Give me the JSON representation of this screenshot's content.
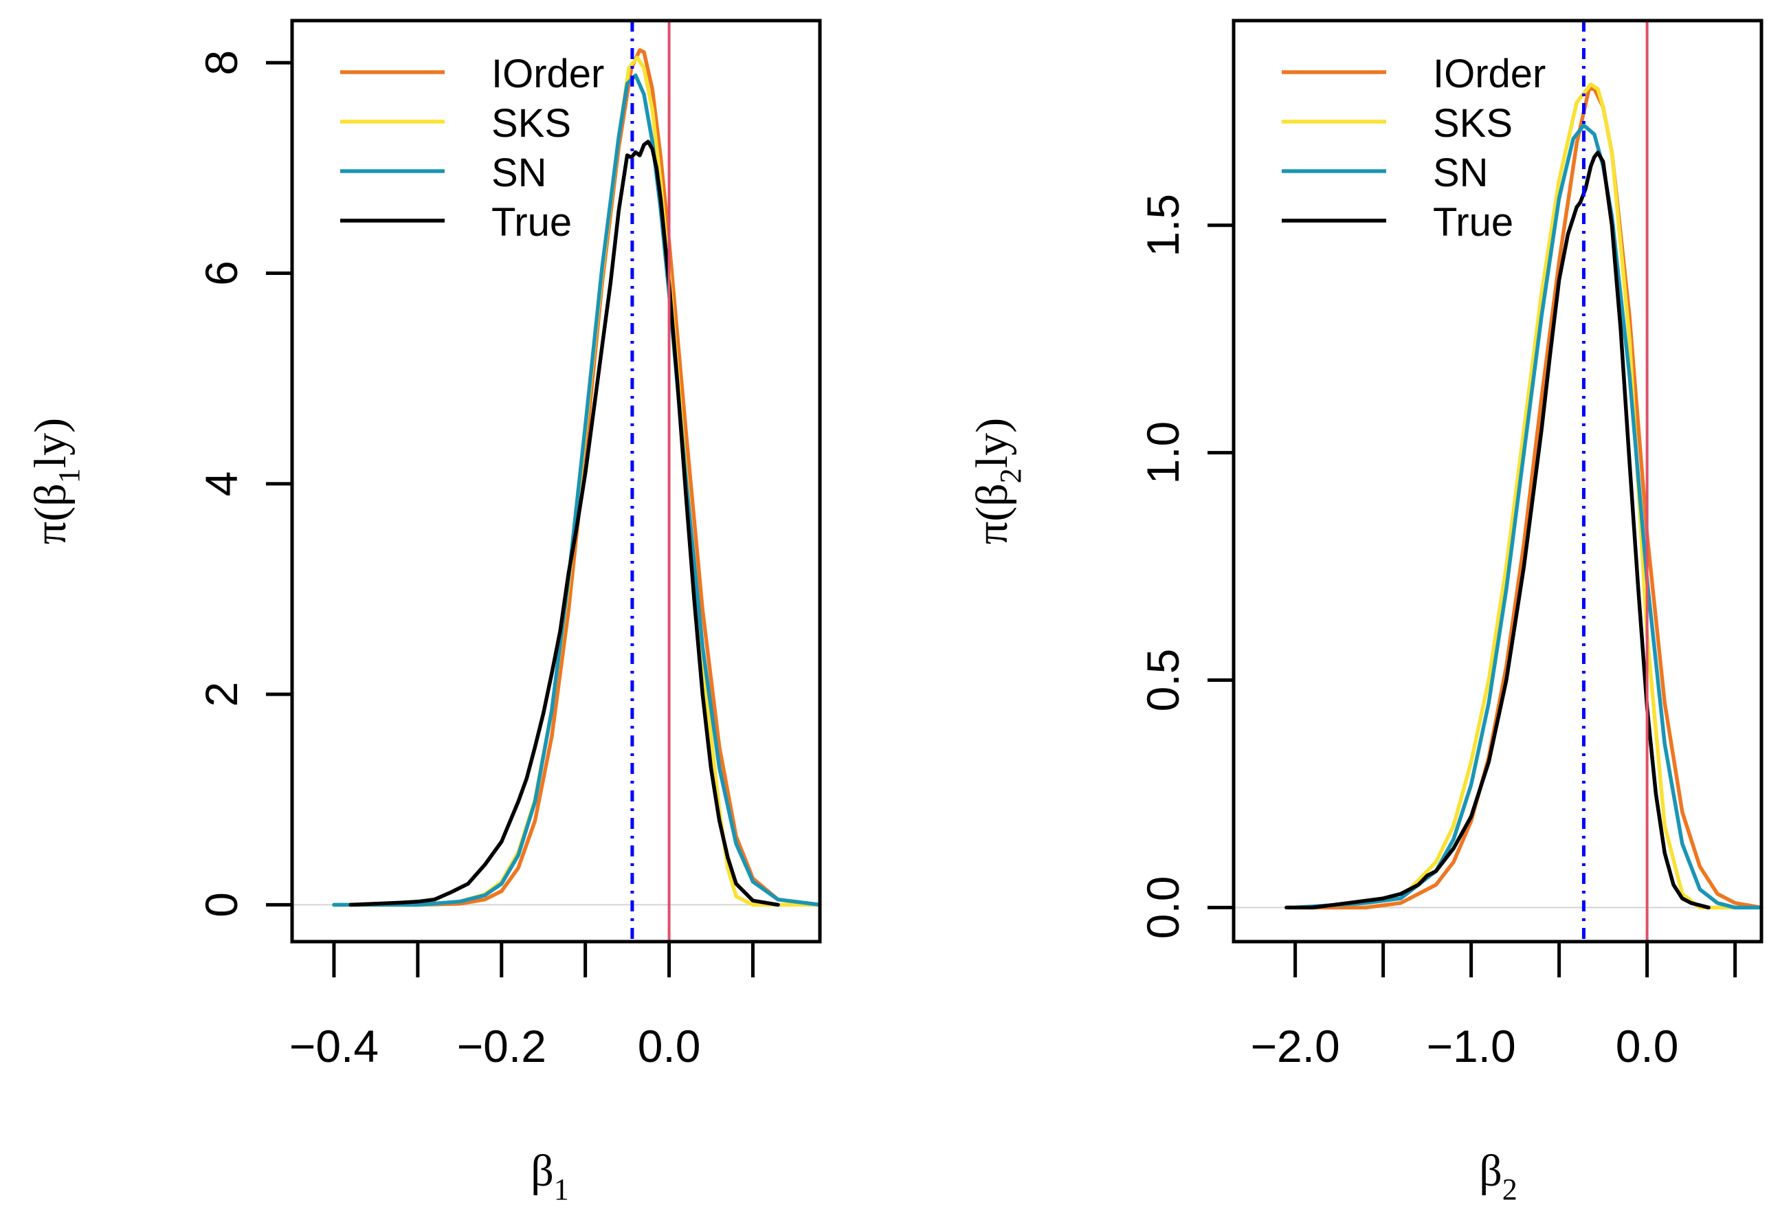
{
  "colors": {
    "iorder": "#EE7722",
    "sks": "#F9E235",
    "sn": "#1A95B5",
    "true": "#000000",
    "mode_line": "#0000FF",
    "zero_line": "#E0506A",
    "baseline": "#D3D3D3"
  },
  "chart_data": [
    {
      "type": "line",
      "panel": "left",
      "xlabel": {
        "symbol": "β",
        "sub": "1"
      },
      "ylabel": {
        "prefix": "π(β",
        "sub": "1",
        "suffix": "ly)"
      },
      "xlim": [
        -0.45,
        0.18
      ],
      "ylim": [
        -0.35,
        8.4
      ],
      "x_ticks": [
        -0.4,
        -0.3,
        -0.2,
        -0.1,
        0.0,
        0.1
      ],
      "x_tick_labels": [
        {
          "value": -0.4,
          "label": "−0.4"
        },
        {
          "value": -0.2,
          "label": "−0.2"
        },
        {
          "value": 0.0,
          "label": "0.0"
        }
      ],
      "y_ticks": [
        {
          "value": 0,
          "label": "0"
        },
        {
          "value": 2,
          "label": "2"
        },
        {
          "value": 4,
          "label": "4"
        },
        {
          "value": 6,
          "label": "6"
        },
        {
          "value": 8,
          "label": "8"
        }
      ],
      "vlines": {
        "zero": 0.0,
        "mode": -0.044
      },
      "legend": {
        "position": "top-left",
        "entries": [
          {
            "key": "iorder",
            "label": "IOrder"
          },
          {
            "key": "sks",
            "label": "SKS"
          },
          {
            "key": "sn",
            "label": "SN"
          },
          {
            "key": "true",
            "label": "True"
          }
        ]
      },
      "series": [
        {
          "name": "IOrder",
          "color_key": "iorder",
          "x": [
            -0.4,
            -0.3,
            -0.25,
            -0.22,
            -0.2,
            -0.18,
            -0.16,
            -0.14,
            -0.12,
            -0.1,
            -0.08,
            -0.06,
            -0.045,
            -0.035,
            -0.03,
            -0.02,
            -0.01,
            0.0,
            0.02,
            0.04,
            0.06,
            0.08,
            0.1,
            0.13,
            0.18
          ],
          "y": [
            0,
            0,
            0.01,
            0.05,
            0.13,
            0.35,
            0.8,
            1.6,
            2.8,
            4.3,
            5.9,
            7.2,
            7.95,
            8.12,
            8.1,
            7.75,
            7.1,
            6.3,
            4.5,
            2.8,
            1.5,
            0.65,
            0.25,
            0.05,
            0
          ]
        },
        {
          "name": "SKS",
          "color_key": "sks",
          "x": [
            -0.4,
            -0.3,
            -0.25,
            -0.22,
            -0.2,
            -0.18,
            -0.16,
            -0.14,
            -0.12,
            -0.1,
            -0.08,
            -0.06,
            -0.048,
            -0.038,
            -0.03,
            -0.02,
            -0.01,
            0.0,
            0.02,
            0.04,
            0.06,
            0.07,
            0.08,
            0.1,
            0.18
          ],
          "y": [
            0,
            0,
            0.03,
            0.1,
            0.22,
            0.5,
            1.0,
            1.85,
            3.05,
            4.5,
            6.0,
            7.3,
            7.95,
            8.05,
            7.95,
            7.55,
            6.85,
            6.0,
            4.1,
            2.3,
            0.9,
            0.35,
            0.08,
            0,
            0
          ]
        },
        {
          "name": "SN",
          "color_key": "sn",
          "x": [
            -0.4,
            -0.3,
            -0.25,
            -0.22,
            -0.2,
            -0.18,
            -0.16,
            -0.14,
            -0.12,
            -0.1,
            -0.08,
            -0.06,
            -0.05,
            -0.04,
            -0.03,
            -0.02,
            -0.01,
            0.0,
            0.02,
            0.04,
            0.06,
            0.08,
            0.1,
            0.13,
            0.18
          ],
          "y": [
            0,
            0,
            0.03,
            0.09,
            0.2,
            0.47,
            0.98,
            1.85,
            3.1,
            4.55,
            6.05,
            7.3,
            7.8,
            7.88,
            7.7,
            7.25,
            6.6,
            5.8,
            4.05,
            2.45,
            1.3,
            0.58,
            0.22,
            0.05,
            0
          ]
        },
        {
          "name": "True",
          "color_key": "true",
          "x": [
            -0.38,
            -0.32,
            -0.3,
            -0.28,
            -0.26,
            -0.24,
            -0.22,
            -0.2,
            -0.18,
            -0.17,
            -0.16,
            -0.15,
            -0.14,
            -0.13,
            -0.12,
            -0.11,
            -0.1,
            -0.09,
            -0.08,
            -0.07,
            -0.06,
            -0.05,
            -0.045,
            -0.04,
            -0.035,
            -0.03,
            -0.025,
            -0.02,
            -0.015,
            -0.01,
            0.0,
            0.01,
            0.02,
            0.03,
            0.04,
            0.05,
            0.06,
            0.07,
            0.08,
            0.1,
            0.13
          ],
          "y": [
            0,
            0.02,
            0.03,
            0.05,
            0.12,
            0.2,
            0.38,
            0.6,
            0.98,
            1.2,
            1.5,
            1.82,
            2.2,
            2.6,
            3.15,
            3.6,
            4.1,
            4.7,
            5.3,
            5.9,
            6.6,
            7.12,
            7.1,
            7.15,
            7.12,
            7.22,
            7.25,
            7.18,
            7.0,
            6.7,
            5.9,
            4.95,
            3.9,
            2.9,
            2.0,
            1.3,
            0.8,
            0.45,
            0.2,
            0.04,
            0
          ]
        }
      ]
    },
    {
      "type": "line",
      "panel": "right",
      "xlabel": {
        "symbol": "β",
        "sub": "2"
      },
      "ylabel": {
        "prefix": "π(β",
        "sub": "2",
        "suffix": "ly)"
      },
      "xlim": [
        -2.35,
        0.65
      ],
      "ylim": [
        -0.075,
        1.95
      ],
      "x_ticks": [
        -2.0,
        -1.5,
        -1.0,
        -0.5,
        0.0,
        0.5
      ],
      "x_tick_labels": [
        {
          "value": -2.0,
          "label": "−2.0"
        },
        {
          "value": -1.0,
          "label": "−1.0"
        },
        {
          "value": 0.0,
          "label": "0.0"
        }
      ],
      "y_ticks": [
        {
          "value": 0.0,
          "label": "0.0"
        },
        {
          "value": 0.5,
          "label": "0.5"
        },
        {
          "value": 1.0,
          "label": "1.0"
        },
        {
          "value": 1.5,
          "label": "1.5"
        }
      ],
      "vlines": {
        "zero": 0.0,
        "mode": -0.36
      },
      "legend": {
        "position": "top-left",
        "entries": [
          {
            "key": "iorder",
            "label": "IOrder"
          },
          {
            "key": "sks",
            "label": "SKS"
          },
          {
            "key": "sn",
            "label": "SN"
          },
          {
            "key": "true",
            "label": "True"
          }
        ]
      },
      "series": [
        {
          "name": "IOrder",
          "color_key": "iorder",
          "x": [
            -2.0,
            -1.6,
            -1.4,
            -1.2,
            -1.1,
            -1.0,
            -0.9,
            -0.8,
            -0.7,
            -0.6,
            -0.5,
            -0.4,
            -0.33,
            -0.3,
            -0.25,
            -0.2,
            -0.1,
            0.0,
            0.1,
            0.2,
            0.3,
            0.4,
            0.5,
            0.65
          ],
          "y": [
            0,
            0,
            0.01,
            0.05,
            0.1,
            0.19,
            0.33,
            0.53,
            0.8,
            1.12,
            1.42,
            1.68,
            1.8,
            1.8,
            1.76,
            1.66,
            1.3,
            0.82,
            0.45,
            0.21,
            0.09,
            0.03,
            0.01,
            0
          ]
        },
        {
          "name": "SKS",
          "color_key": "sks",
          "x": [
            -2.0,
            -1.6,
            -1.4,
            -1.2,
            -1.1,
            -1.0,
            -0.9,
            -0.8,
            -0.7,
            -0.6,
            -0.5,
            -0.4,
            -0.32,
            -0.28,
            -0.25,
            -0.2,
            -0.1,
            0.0,
            0.1,
            0.2,
            0.3,
            0.4,
            0.65
          ],
          "y": [
            0,
            0.01,
            0.02,
            0.1,
            0.18,
            0.32,
            0.5,
            0.75,
            1.05,
            1.35,
            1.6,
            1.77,
            1.81,
            1.8,
            1.76,
            1.66,
            1.25,
            0.6,
            0.18,
            0.03,
            0,
            0,
            0
          ]
        },
        {
          "name": "SN",
          "color_key": "sn",
          "x": [
            -2.0,
            -1.6,
            -1.4,
            -1.2,
            -1.1,
            -1.0,
            -0.9,
            -0.8,
            -0.7,
            -0.6,
            -0.5,
            -0.42,
            -0.36,
            -0.3,
            -0.25,
            -0.2,
            -0.1,
            0.0,
            0.1,
            0.2,
            0.3,
            0.4,
            0.5,
            0.65
          ],
          "y": [
            0,
            0.01,
            0.02,
            0.08,
            0.15,
            0.27,
            0.45,
            0.7,
            1.0,
            1.3,
            1.56,
            1.69,
            1.72,
            1.7,
            1.63,
            1.52,
            1.17,
            0.72,
            0.36,
            0.14,
            0.04,
            0.01,
            0,
            0
          ]
        },
        {
          "name": "True",
          "color_key": "true",
          "x": [
            -2.05,
            -1.9,
            -1.7,
            -1.5,
            -1.4,
            -1.3,
            -1.25,
            -1.2,
            -1.1,
            -1.0,
            -0.9,
            -0.8,
            -0.7,
            -0.6,
            -0.55,
            -0.5,
            -0.45,
            -0.4,
            -0.38,
            -0.35,
            -0.32,
            -0.3,
            -0.28,
            -0.25,
            -0.2,
            -0.15,
            -0.1,
            -0.05,
            0.0,
            0.05,
            0.1,
            0.15,
            0.2,
            0.25,
            0.35
          ],
          "y": [
            0,
            0,
            0.01,
            0.02,
            0.03,
            0.05,
            0.07,
            0.08,
            0.13,
            0.2,
            0.32,
            0.5,
            0.75,
            1.05,
            1.22,
            1.38,
            1.48,
            1.54,
            1.55,
            1.58,
            1.63,
            1.65,
            1.66,
            1.64,
            1.5,
            1.27,
            0.98,
            0.7,
            0.44,
            0.25,
            0.12,
            0.05,
            0.02,
            0.01,
            0
          ]
        }
      ]
    }
  ]
}
